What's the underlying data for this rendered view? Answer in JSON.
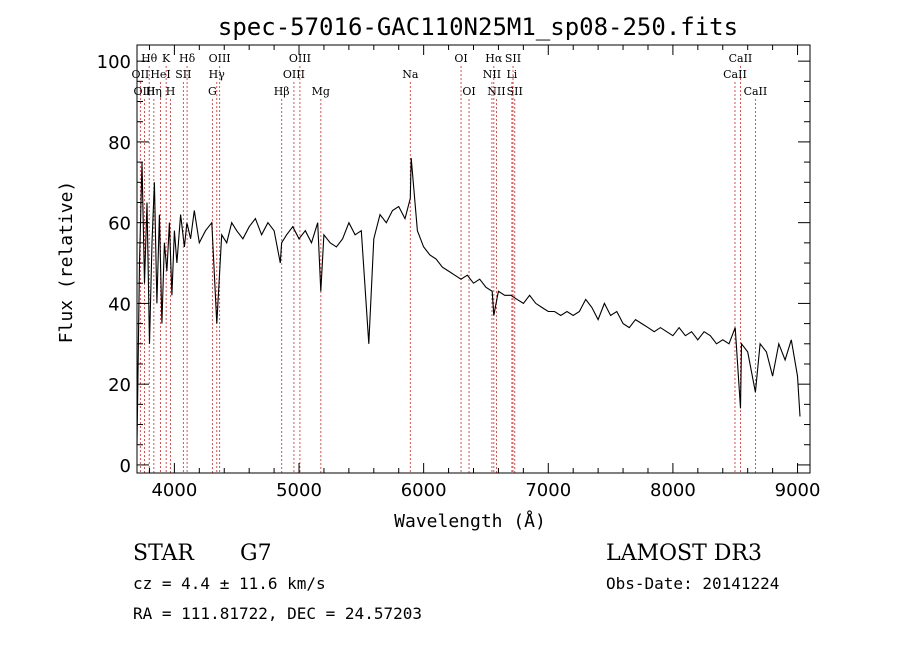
{
  "chart_data": {
    "type": "line",
    "title": "spec-57016-GAC110N25M1_sp08-250.fits",
    "xlabel": "Wavelength (Å)",
    "ylabel": "Flux (relative)",
    "xlim": [
      3700,
      9100
    ],
    "ylim": [
      -2,
      104
    ],
    "xticks": [
      4000,
      5000,
      6000,
      7000,
      8000,
      9000
    ],
    "yticks": [
      0,
      20,
      40,
      60,
      80,
      100
    ],
    "spectrum": {
      "name": "flux",
      "x": [
        3700,
        3720,
        3740,
        3760,
        3780,
        3800,
        3820,
        3840,
        3860,
        3880,
        3900,
        3920,
        3940,
        3960,
        3980,
        4000,
        4020,
        4050,
        4080,
        4100,
        4130,
        4160,
        4200,
        4250,
        4300,
        4340,
        4380,
        4420,
        4460,
        4500,
        4550,
        4600,
        4650,
        4700,
        4750,
        4800,
        4850,
        4860,
        4900,
        4950,
        5000,
        5050,
        5100,
        5150,
        5175,
        5200,
        5250,
        5300,
        5350,
        5400,
        5450,
        5500,
        5560,
        5600,
        5650,
        5700,
        5750,
        5800,
        5850,
        5893,
        5900,
        5950,
        6000,
        6050,
        6100,
        6150,
        6200,
        6250,
        6300,
        6350,
        6400,
        6450,
        6500,
        6550,
        6563,
        6600,
        6650,
        6700,
        6750,
        6800,
        6850,
        6900,
        6950,
        7000,
        7050,
        7100,
        7150,
        7200,
        7250,
        7300,
        7350,
        7400,
        7450,
        7500,
        7550,
        7600,
        7650,
        7700,
        7750,
        7800,
        7850,
        7900,
        7950,
        8000,
        8050,
        8100,
        8150,
        8200,
        8250,
        8300,
        8350,
        8400,
        8450,
        8500,
        8542,
        8550,
        8600,
        8662,
        8700,
        8750,
        8800,
        8850,
        8900,
        8950,
        9000,
        9020
      ],
      "y": [
        5,
        50,
        75,
        45,
        65,
        30,
        55,
        70,
        40,
        62,
        35,
        55,
        48,
        60,
        42,
        58,
        50,
        62,
        54,
        60,
        56,
        63,
        55,
        58,
        60,
        35,
        57,
        55,
        60,
        58,
        56,
        59,
        61,
        57,
        60,
        58,
        50,
        55,
        57,
        59,
        56,
        58,
        55,
        60,
        43,
        57,
        55,
        54,
        56,
        60,
        57,
        58,
        30,
        56,
        62,
        60,
        63,
        64,
        61,
        66,
        76,
        58,
        54,
        52,
        51,
        49,
        48,
        47,
        46,
        47,
        45,
        46,
        44,
        43,
        37,
        43,
        42,
        42,
        41,
        40,
        42,
        40,
        39,
        38,
        38,
        37,
        38,
        37,
        38,
        41,
        39,
        36,
        40,
        37,
        38,
        35,
        34,
        36,
        35,
        34,
        33,
        34,
        33,
        32,
        34,
        32,
        33,
        31,
        33,
        32,
        30,
        31,
        30,
        34,
        14,
        30,
        28,
        18,
        30,
        28,
        22,
        30,
        26,
        31,
        22,
        12
      ]
    },
    "line_groups": [
      {
        "name": "Hθ",
        "x": 3798,
        "row": 1
      },
      {
        "name": "OII",
        "x": 3727,
        "row": 2
      },
      {
        "name": "OIII",
        "x": 3760,
        "row": 3
      },
      {
        "name": "Hη",
        "x": 3835,
        "row": 3
      },
      {
        "name": "HeI",
        "x": 3889,
        "row": 2
      },
      {
        "name": "K",
        "x": 3934,
        "row": 1
      },
      {
        "name": "H",
        "x": 3969,
        "row": 3
      },
      {
        "name": "SII",
        "x": 4072,
        "row": 2
      },
      {
        "name": "Hδ",
        "x": 4102,
        "row": 1
      },
      {
        "name": "OIII",
        "x": 4363,
        "row": 1
      },
      {
        "name": "Hγ",
        "x": 4340,
        "row": 2
      },
      {
        "name": "G",
        "x": 4305,
        "row": 3
      },
      {
        "name": "Hβ",
        "x": 4861,
        "row": 3
      },
      {
        "name": "OIII",
        "x": 5007,
        "row": 1
      },
      {
        "name": "OIII",
        "x": 4959,
        "row": 2
      },
      {
        "name": "Mg",
        "x": 5175,
        "row": 3
      },
      {
        "name": "Na",
        "x": 5893,
        "row": 2
      },
      {
        "name": "OI",
        "x": 6300,
        "row": 1
      },
      {
        "name": "OI",
        "x": 6364,
        "row": 3
      },
      {
        "name": "Hα",
        "x": 6563,
        "row": 1
      },
      {
        "name": "NII",
        "x": 6548,
        "row": 2
      },
      {
        "name": "NII",
        "x": 6584,
        "row": 3
      },
      {
        "name": "SII",
        "x": 6717,
        "row": 1
      },
      {
        "name": "Li",
        "x": 6708,
        "row": 2
      },
      {
        "name": "SII",
        "x": 6731,
        "row": 3
      },
      {
        "name": "CaII",
        "x": 8542,
        "row": 1
      },
      {
        "name": "CaII",
        "x": 8498,
        "row": 2
      },
      {
        "name": "CaII",
        "x": 8662,
        "row": 3
      }
    ]
  },
  "info": {
    "class": "STAR",
    "subclass": "G7",
    "survey": "LAMOST DR3",
    "redshift": "cz = 4.4 ± 11.6 km/s",
    "obsdate": "Obs-Date: 20141224",
    "coords": "RA = 111.81722, DEC =  24.57203"
  },
  "colors": {
    "spectrum": "#000000",
    "lines": "#d04040",
    "axis": "#000000"
  }
}
